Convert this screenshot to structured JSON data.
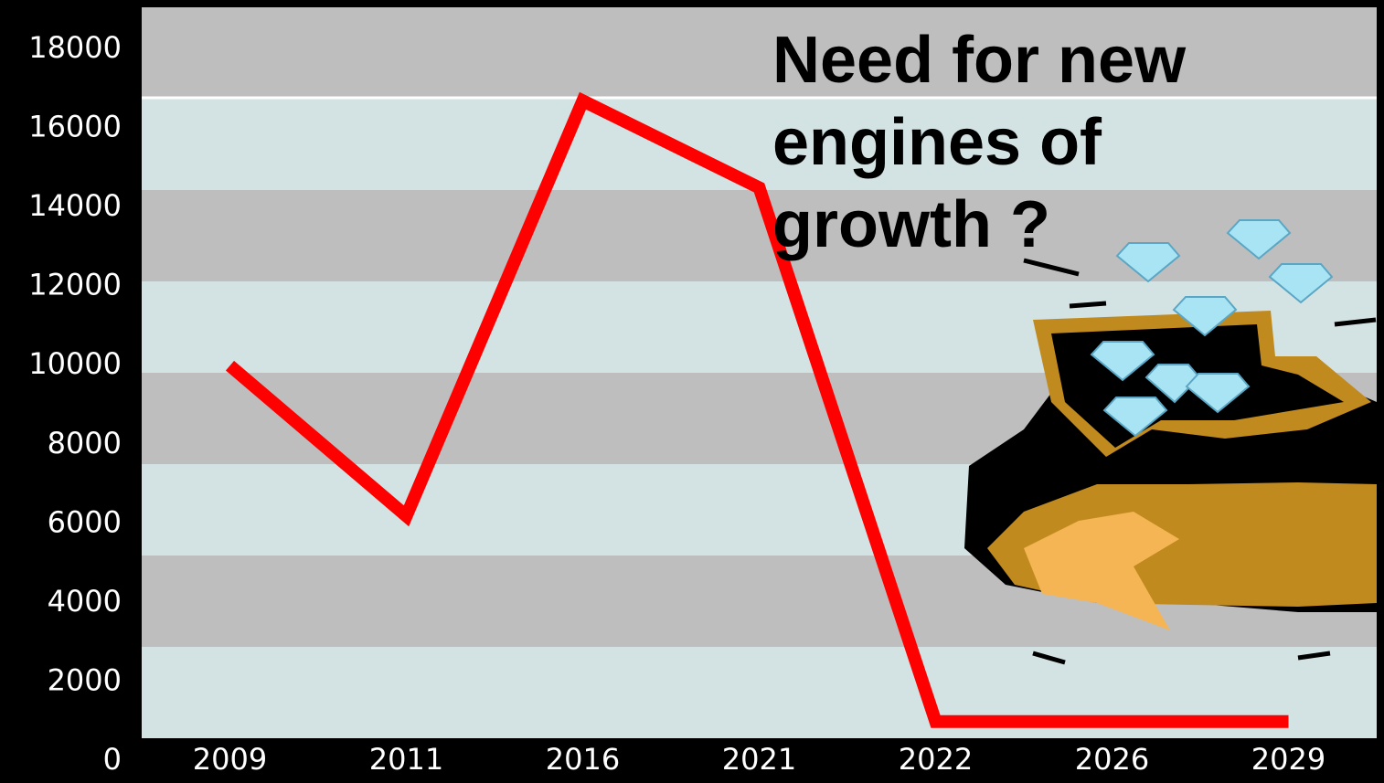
{
  "chart_data": {
    "type": "line",
    "categories": [
      "2009",
      "2011",
      "2016",
      "2021",
      "2022",
      "2026",
      "2029"
    ],
    "values": [
      10000,
      6200,
      16700,
      14500,
      1000,
      1000,
      1000
    ],
    "color": "#ff0000",
    "ylim": [
      0,
      18000
    ],
    "yticks": [
      0,
      2000,
      4000,
      6000,
      8000,
      10000,
      12000,
      14000,
      16000,
      18000
    ],
    "annotation": [
      "Need for new",
      "engines of",
      "growth ?"
    ]
  }
}
